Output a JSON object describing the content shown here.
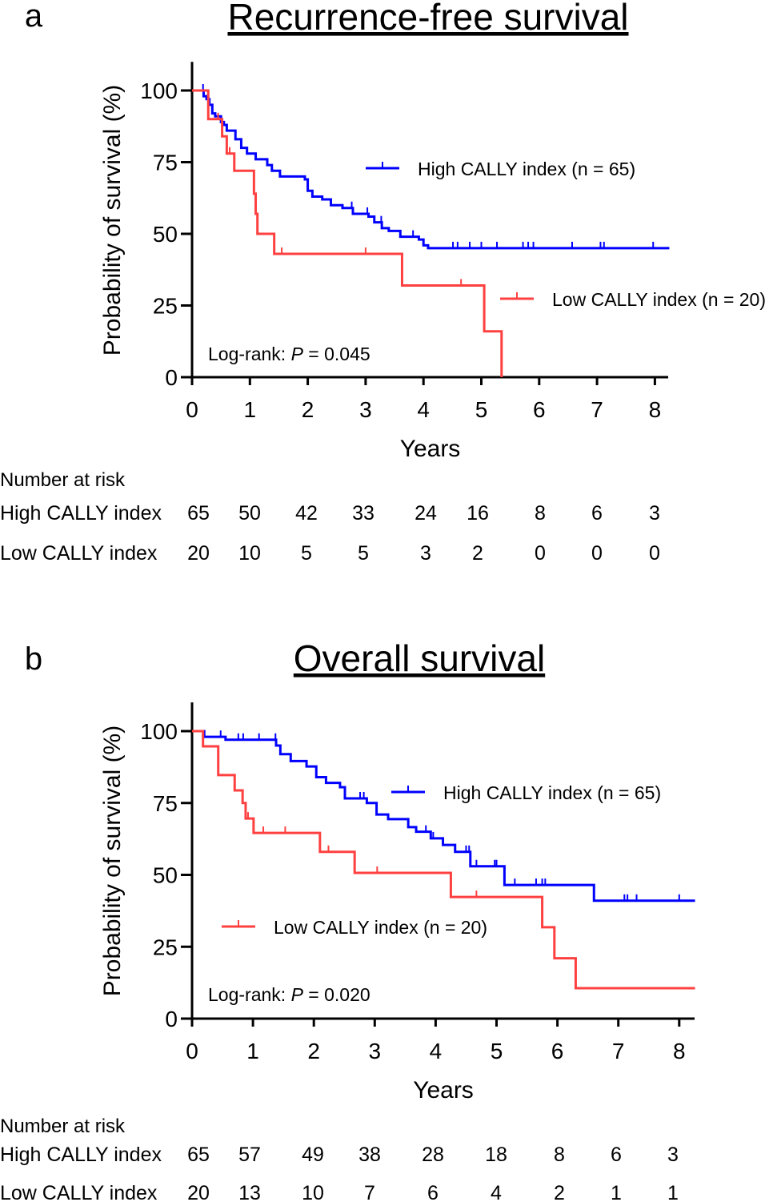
{
  "chart_data": [
    {
      "type": "line",
      "panel_label": "a",
      "title": "Recurrence-free survival",
      "xlabel": "Years",
      "ylabel": "Probability of survival (%)",
      "xlim": [
        0,
        8.3
      ],
      "ylim": [
        0,
        100
      ],
      "xticks": [
        "0",
        "1",
        "2",
        "3",
        "4",
        "5",
        "6",
        "7",
        "8"
      ],
      "yticks": [
        "0",
        "25",
        "50",
        "75",
        "100"
      ],
      "annotation_prefix": "Log-rank: ",
      "annotation_p": "P",
      "annotation_value": " = 0.045",
      "series": [
        {
          "name": "High CALLY index (n = 65)",
          "color": "#0000ff",
          "steps": [
            [
              0,
              100
            ],
            [
              0.2,
              98
            ],
            [
              0.25,
              97
            ],
            [
              0.3,
              95
            ],
            [
              0.35,
              92
            ],
            [
              0.4,
              91
            ],
            [
              0.5,
              89
            ],
            [
              0.55,
              88
            ],
            [
              0.6,
              86
            ],
            [
              0.75,
              83
            ],
            [
              0.85,
              80
            ],
            [
              0.95,
              78
            ],
            [
              1.1,
              76
            ],
            [
              1.3,
              74
            ],
            [
              1.38,
              72
            ],
            [
              1.52,
              70
            ],
            [
              1.95,
              69
            ],
            [
              2.0,
              65
            ],
            [
              2.08,
              63
            ],
            [
              2.25,
              62
            ],
            [
              2.4,
              60
            ],
            [
              2.6,
              59
            ],
            [
              2.78,
              57
            ],
            [
              3.05,
              56
            ],
            [
              3.15,
              54
            ],
            [
              3.28,
              52
            ],
            [
              3.4,
              51
            ],
            [
              3.6,
              49
            ],
            [
              3.92,
              48
            ],
            [
              4.0,
              46
            ],
            [
              4.08,
              45
            ]
          ],
          "end": 8.25,
          "censored": [
            0.19,
            2.76,
            3.03,
            3.27,
            3.82,
            4.51,
            4.59,
            4.8,
            5.0,
            5.27,
            5.72,
            5.81,
            5.9,
            6.57,
            7.06,
            7.12,
            7.97
          ]
        },
        {
          "name": "Low CALLY index (n = 20)",
          "color": "#ff4040",
          "steps": [
            [
              0,
              100
            ],
            [
              0.28,
              90
            ],
            [
              0.52,
              84
            ],
            [
              0.6,
              78
            ],
            [
              0.73,
              72
            ],
            [
              1.07,
              64
            ],
            [
              1.1,
              57
            ],
            [
              1.13,
              50
            ],
            [
              1.42,
              43
            ],
            [
              3.63,
              32
            ],
            [
              5.05,
              16
            ],
            [
              5.35,
              0
            ]
          ],
          "end": 5.35,
          "censored": [
            0.45,
            0.6,
            0.65,
            1.55,
            3.0,
            4.65
          ]
        }
      ],
      "risk_table": {
        "header": "Number at risk",
        "rows": [
          {
            "label": "High CALLY index",
            "values": [
              "65",
              "50",
              "42",
              "33",
              "24",
              "16",
              "8",
              "6",
              "3"
            ]
          },
          {
            "label": "Low CALLY index",
            "values": [
              "20",
              "10",
              "5",
              "5",
              "3",
              "2",
              "0",
              "0",
              "0"
            ]
          }
        ]
      }
    },
    {
      "type": "line",
      "panel_label": "b",
      "title": "Overall survival",
      "xlabel": "Years",
      "ylabel": "Probability of survival (%)",
      "xlim": [
        0,
        8.3
      ],
      "ylim": [
        0,
        100
      ],
      "xticks": [
        "0",
        "1",
        "2",
        "3",
        "4",
        "5",
        "6",
        "7",
        "8"
      ],
      "yticks": [
        "0",
        "25",
        "50",
        "75",
        "100"
      ],
      "annotation_prefix": "Log-rank: ",
      "annotation_p": "P",
      "annotation_value": " = 0.020",
      "series": [
        {
          "name": "High CALLY index (n = 65)",
          "color": "#0000ff",
          "steps": [
            [
              0,
              100
            ],
            [
              0.2,
              98
            ],
            [
              0.55,
              97
            ],
            [
              1.38,
              95
            ],
            [
              1.45,
              92
            ],
            [
              1.62,
              89.6
            ],
            [
              1.88,
              87.7
            ],
            [
              2.04,
              84
            ],
            [
              2.2,
              82
            ],
            [
              2.43,
              80.5
            ],
            [
              2.51,
              76.6
            ],
            [
              2.87,
              75
            ],
            [
              3.03,
              71
            ],
            [
              3.22,
              69.4
            ],
            [
              3.55,
              66.6
            ],
            [
              3.68,
              65
            ],
            [
              3.92,
              62.7
            ],
            [
              4.12,
              60.4
            ],
            [
              4.32,
              58
            ],
            [
              4.57,
              53
            ],
            [
              5.13,
              46.5
            ],
            [
              6.6,
              41
            ]
          ],
          "end": 8.26,
          "censored": [
            0.47,
            0.76,
            0.84,
            1.1,
            1.37,
            2.76,
            2.82,
            3.84,
            3.96,
            4.5,
            4.55,
            4.67,
            4.97,
            5.0,
            5.3,
            5.65,
            5.75,
            5.8,
            7.1,
            7.15,
            7.3,
            8.0
          ]
        },
        {
          "name": "Low CALLY index (n = 20)",
          "color": "#ff4040",
          "steps": [
            [
              0,
              100
            ],
            [
              0.18,
              94.7
            ],
            [
              0.43,
              84.7
            ],
            [
              0.7,
              79.4
            ],
            [
              0.83,
              75
            ],
            [
              0.88,
              69.6
            ],
            [
              1.01,
              64.6
            ],
            [
              2.1,
              58
            ],
            [
              2.67,
              50.7
            ],
            [
              4.25,
              42.3
            ],
            [
              5.75,
              31.8
            ],
            [
              5.95,
              21
            ],
            [
              6.3,
              10.6
            ]
          ],
          "end": 8.26,
          "censored": [
            0.92,
            1.17,
            1.53,
            2.24,
            3.04,
            4.67
          ]
        }
      ],
      "risk_table": {
        "header": "Number at risk",
        "rows": [
          {
            "label": "High CALLY index",
            "values": [
              "65",
              "57",
              "49",
              "38",
              "28",
              "18",
              "8",
              "6",
              "3"
            ]
          },
          {
            "label": "Low CALLY index",
            "values": [
              "20",
              "13",
              "10",
              "7",
              "6",
              "4",
              "2",
              "1",
              "1"
            ]
          }
        ]
      }
    }
  ]
}
